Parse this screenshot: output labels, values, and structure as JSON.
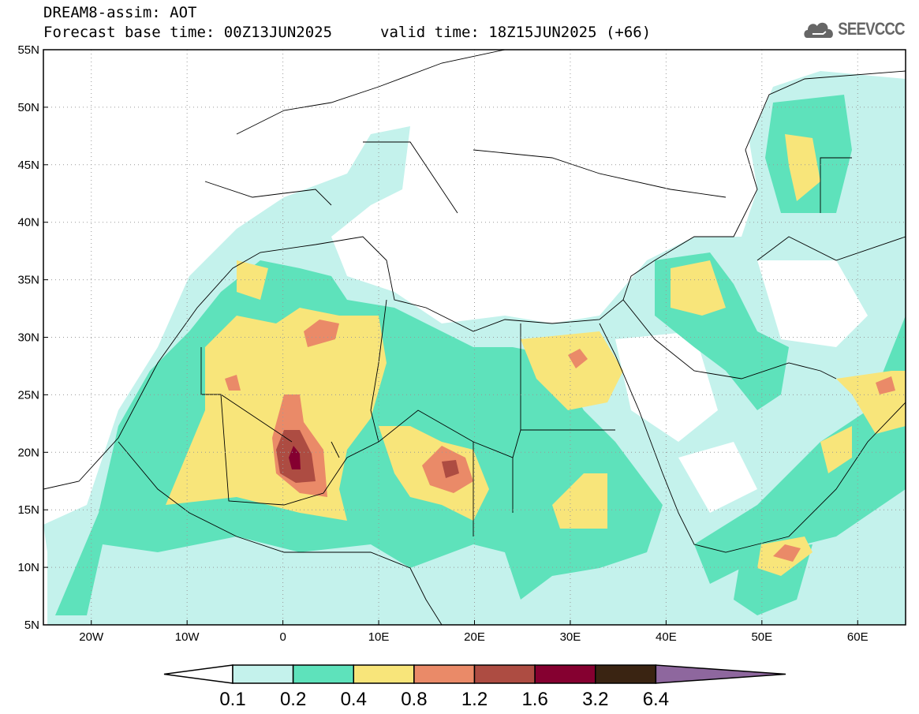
{
  "title": {
    "line1": "DREAM8-assim: AOT",
    "base": "Forecast base time: 00Z13JUN2025",
    "valid": "valid time: 18Z15JUN2025 (+66)"
  },
  "logo": {
    "text": "SEEVCCC",
    "icon": "cloud-icon"
  },
  "axes": {
    "lat_labels": [
      "5N",
      "10N",
      "15N",
      "20N",
      "25N",
      "30N",
      "35N",
      "40N",
      "45N",
      "50N",
      "55N"
    ],
    "lat_values": [
      5,
      10,
      15,
      20,
      25,
      30,
      35,
      40,
      45,
      50,
      55
    ],
    "lon_labels": [
      "20W",
      "10W",
      "0",
      "10E",
      "20E",
      "30E",
      "40E",
      "50E",
      "60E"
    ],
    "lon_values": [
      -20,
      -10,
      0,
      10,
      20,
      30,
      40,
      50,
      60
    ],
    "lon_range": [
      -25,
      65
    ],
    "lat_range": [
      5,
      55
    ]
  },
  "colorbar": {
    "levels": [
      "0.1",
      "0.2",
      "0.4",
      "0.8",
      "1.2",
      "1.6",
      "3.2",
      "6.4"
    ],
    "colors": [
      "#ffffff",
      "#c4f2ec",
      "#5ee2bb",
      "#f8e57a",
      "#ea8a68",
      "#ad4c42",
      "#850030",
      "#3a2412",
      "#8e679e"
    ]
  }
}
